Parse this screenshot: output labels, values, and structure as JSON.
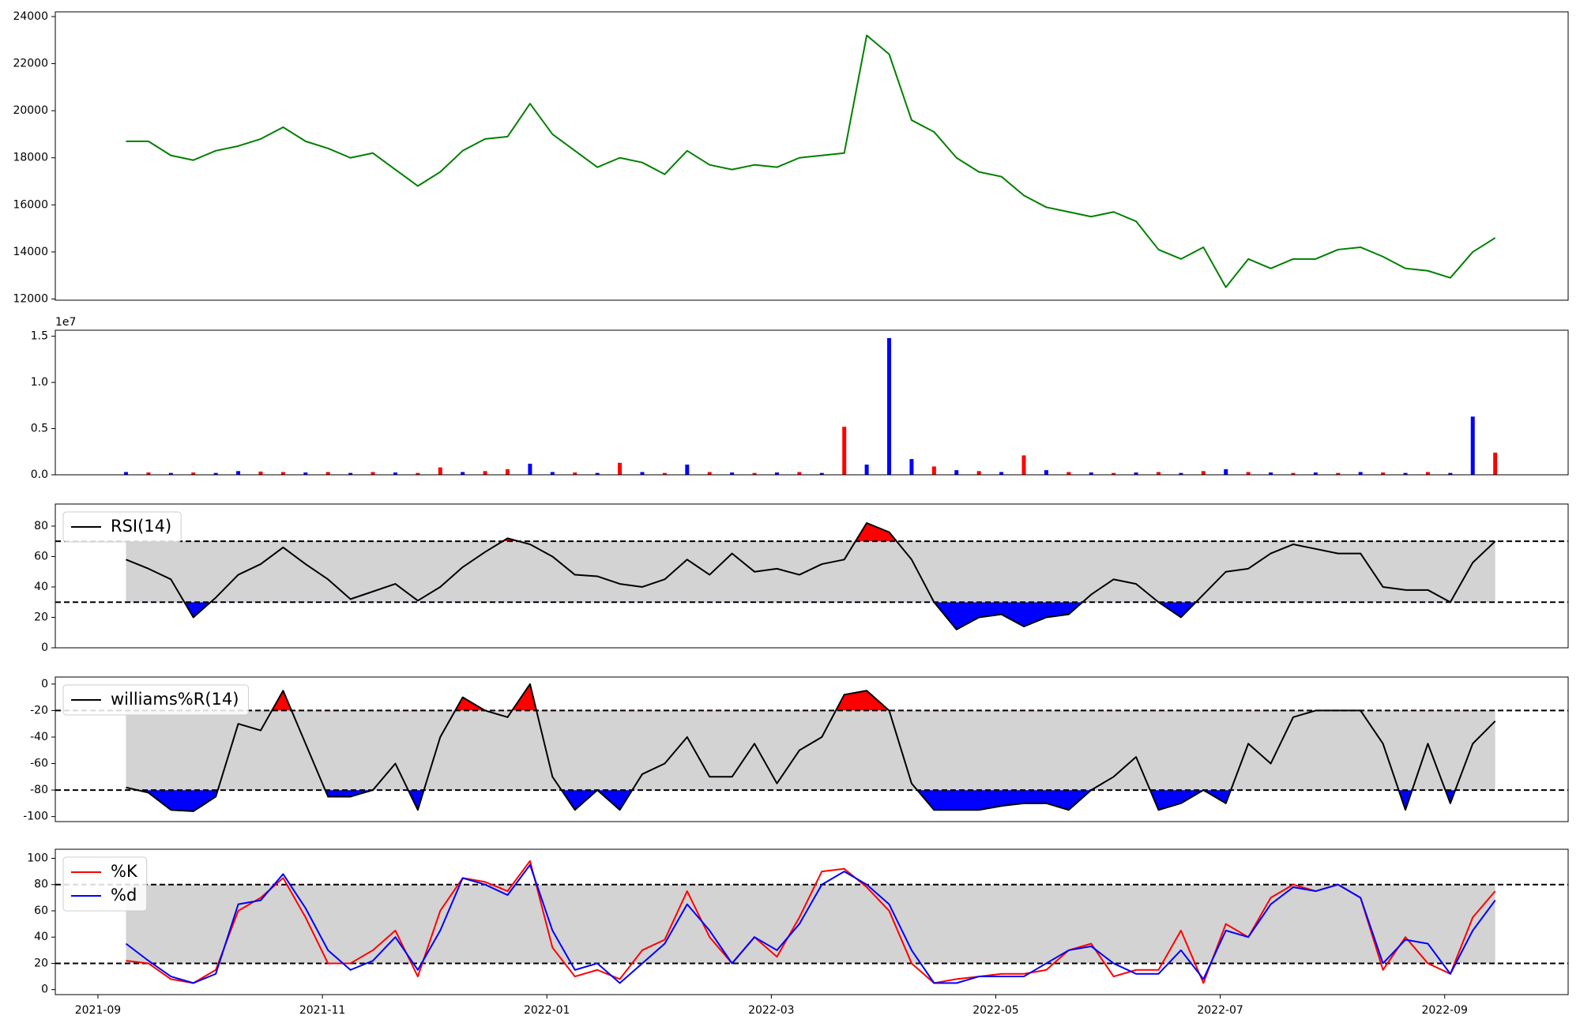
{
  "chart_data": [
    {
      "type": "line",
      "x": [
        0.25,
        0.45,
        0.65,
        0.85,
        1.05,
        1.25,
        1.45,
        1.65,
        1.85,
        2.05,
        2.25,
        2.45,
        2.65,
        2.85,
        3.05,
        3.25,
        3.45,
        3.65,
        3.85,
        4.05,
        4.25,
        4.45,
        4.65,
        4.85,
        5.05,
        5.25,
        5.45,
        5.65,
        5.85,
        6.05,
        6.25,
        6.45,
        6.65,
        6.85,
        7.05,
        7.25,
        7.45,
        7.65,
        7.85,
        8.05,
        8.25,
        8.45,
        8.65,
        8.85,
        9.05,
        9.25,
        9.45,
        9.65,
        9.85,
        10.05,
        10.25,
        10.45,
        10.65,
        10.85,
        11.05,
        11.25,
        11.45,
        11.65,
        11.85,
        12.05,
        12.25,
        12.45
      ],
      "series": [
        {
          "color": "green",
          "values": [
            18700,
            18700,
            18100,
            17900,
            18300,
            18500,
            18800,
            19300,
            18700,
            18400,
            18000,
            18200,
            17500,
            16800,
            17400,
            18300,
            18800,
            18900,
            20300,
            19000,
            18300,
            17600,
            18000,
            17800,
            17300,
            18300,
            17700,
            17500,
            17700,
            17600,
            18000,
            18100,
            18200,
            23200,
            22400,
            19600,
            19100,
            18000,
            17400,
            17200,
            16400,
            15900,
            15700,
            15500,
            15700,
            15300,
            14100,
            13700,
            14200,
            12500,
            13700,
            13300,
            13700,
            13700,
            14100,
            14200,
            13800,
            13300,
            13200,
            12900,
            14000,
            14600
          ]
        }
      ],
      "xlim": [
        -0.38,
        13.1
      ],
      "ylim": [
        11950,
        24200
      ],
      "yticks": [
        12000,
        14000,
        16000,
        18000,
        20000,
        22000,
        24000
      ]
    },
    {
      "type": "bar",
      "x": [
        0.25,
        0.45,
        0.65,
        0.85,
        1.05,
        1.25,
        1.45,
        1.65,
        1.85,
        2.05,
        2.25,
        2.45,
        2.65,
        2.85,
        3.05,
        3.25,
        3.45,
        3.65,
        3.85,
        4.05,
        4.25,
        4.45,
        4.65,
        4.85,
        5.05,
        5.25,
        5.45,
        5.65,
        5.85,
        6.05,
        6.25,
        6.45,
        6.65,
        6.85,
        7.05,
        7.25,
        7.45,
        7.65,
        7.85,
        8.05,
        8.25,
        8.45,
        8.65,
        8.85,
        9.05,
        9.25,
        9.45,
        9.65,
        9.85,
        10.05,
        10.25,
        10.45,
        10.65,
        10.85,
        11.05,
        11.25,
        11.45,
        11.65,
        11.85,
        12.05,
        12.25,
        12.45
      ],
      "values": [
        300000,
        250000,
        200000,
        250000,
        200000,
        400000,
        350000,
        300000,
        250000,
        300000,
        200000,
        300000,
        250000,
        200000,
        800000,
        300000,
        400000,
        600000,
        1200000,
        300000,
        250000,
        200000,
        1300000,
        300000,
        200000,
        1100000,
        300000,
        250000,
        200000,
        250000,
        300000,
        200000,
        5200000,
        1100000,
        14800000,
        1700000,
        900000,
        500000,
        400000,
        300000,
        2100000,
        500000,
        300000,
        250000,
        200000,
        250000,
        300000,
        200000,
        400000,
        600000,
        300000,
        250000,
        200000,
        250000,
        200000,
        300000,
        250000,
        200000,
        300000,
        200000,
        6300000,
        2400000
      ],
      "colors": [
        "blue",
        "red",
        "blue",
        "red",
        "blue",
        "blue",
        "red",
        "red",
        "blue",
        "red",
        "blue",
        "red",
        "blue",
        "red",
        "red",
        "blue",
        "red",
        "red",
        "blue",
        "blue",
        "red",
        "blue",
        "red",
        "blue",
        "red",
        "blue",
        "red",
        "blue",
        "red",
        "blue",
        "red",
        "blue",
        "red",
        "blue",
        "blue",
        "blue",
        "red",
        "blue",
        "red",
        "blue",
        "red",
        "blue",
        "red",
        "blue",
        "red",
        "blue",
        "red",
        "blue",
        "red",
        "blue",
        "red",
        "blue",
        "red",
        "blue",
        "red",
        "blue",
        "red",
        "blue",
        "red",
        "blue",
        "blue",
        "red"
      ],
      "xlim": [
        -0.38,
        13.1
      ],
      "ylim": [
        0,
        15650000
      ],
      "yticks": [
        {
          "value": 0,
          "label": "0.0"
        },
        {
          "value": 5000000,
          "label": "0.5"
        },
        {
          "value": 10000000,
          "label": "1.0"
        },
        {
          "value": 15000000,
          "label": "1.5"
        }
      ],
      "offset_text": "1e7"
    },
    {
      "type": "line",
      "x": [
        0.25,
        0.45,
        0.65,
        0.85,
        1.05,
        1.25,
        1.45,
        1.65,
        1.85,
        2.05,
        2.25,
        2.45,
        2.65,
        2.85,
        3.05,
        3.25,
        3.45,
        3.65,
        3.85,
        4.05,
        4.25,
        4.45,
        4.65,
        4.85,
        5.05,
        5.25,
        5.45,
        5.65,
        5.85,
        6.05,
        6.25,
        6.45,
        6.65,
        6.85,
        7.05,
        7.25,
        7.45,
        7.65,
        7.85,
        8.05,
        8.25,
        8.45,
        8.65,
        8.85,
        9.05,
        9.25,
        9.45,
        9.65,
        9.85,
        10.05,
        10.25,
        10.45,
        10.65,
        10.85,
        11.05,
        11.25,
        11.45,
        11.65,
        11.85,
        12.05,
        12.25,
        12.45
      ],
      "series": [
        {
          "name": "RSI(14)",
          "color": "black",
          "values": [
            58,
            52,
            45,
            20,
            33,
            48,
            55,
            66,
            55,
            45,
            32,
            37,
            42,
            31,
            40,
            53,
            63,
            72,
            68,
            60,
            48,
            47,
            42,
            40,
            45,
            58,
            48,
            62,
            50,
            52,
            48,
            55,
            58,
            82,
            76,
            58,
            30,
            12,
            20,
            22,
            14,
            20,
            22,
            35,
            45,
            42,
            30,
            20,
            35,
            50,
            52,
            62,
            68,
            65,
            62,
            62,
            40,
            38,
            38,
            30,
            56,
            70
          ]
        }
      ],
      "bands": {
        "lower": 30,
        "upper": 70,
        "fill": "lightgray",
        "above_color": "red",
        "below_color": "blue"
      },
      "xlim": [
        -0.38,
        13.1
      ],
      "ylim": [
        0,
        94.5
      ],
      "yticks": [
        0,
        20,
        40,
        60,
        80
      ],
      "legend": "upper left"
    },
    {
      "type": "line",
      "x": [
        0.25,
        0.45,
        0.65,
        0.85,
        1.05,
        1.25,
        1.45,
        1.65,
        1.85,
        2.05,
        2.25,
        2.45,
        2.65,
        2.85,
        3.05,
        3.25,
        3.45,
        3.65,
        3.85,
        4.05,
        4.25,
        4.45,
        4.65,
        4.85,
        5.05,
        5.25,
        5.45,
        5.65,
        5.85,
        6.05,
        6.25,
        6.45,
        6.65,
        6.85,
        7.05,
        7.25,
        7.45,
        7.65,
        7.85,
        8.05,
        8.25,
        8.45,
        8.65,
        8.85,
        9.05,
        9.25,
        9.45,
        9.65,
        9.85,
        10.05,
        10.25,
        10.45,
        10.65,
        10.85,
        11.05,
        11.25,
        11.45,
        11.65,
        11.85,
        12.05,
        12.25,
        12.45
      ],
      "series": [
        {
          "name": "williams%R(14)",
          "color": "black",
          "values": [
            -78,
            -82,
            -95,
            -96,
            -85,
            -30,
            -35,
            -5,
            -45,
            -85,
            -85,
            -80,
            -60,
            -95,
            -40,
            -10,
            -20,
            -25,
            0,
            -70,
            -95,
            -80,
            -95,
            -68,
            -60,
            -40,
            -70,
            -70,
            -45,
            -75,
            -50,
            -40,
            -8,
            -5,
            -20,
            -75,
            -95,
            -95,
            -95,
            -92,
            -90,
            -90,
            -95,
            -80,
            -70,
            -55,
            -95,
            -90,
            -80,
            -90,
            -45,
            -60,
            -25,
            -20,
            -20,
            -20,
            -45,
            -95,
            -45,
            -90,
            -45,
            -28
          ]
        }
      ],
      "bands": {
        "lower": -80,
        "upper": -20,
        "fill": "lightgray",
        "above_color": "red",
        "below_color": "blue"
      },
      "xlim": [
        -0.38,
        13.1
      ],
      "ylim": [
        -103.8,
        5.3
      ],
      "yticks": [
        0,
        -20,
        -40,
        -60,
        -80,
        -100
      ],
      "legend": "upper left"
    },
    {
      "type": "line",
      "x": [
        0.25,
        0.45,
        0.65,
        0.85,
        1.05,
        1.25,
        1.45,
        1.65,
        1.85,
        2.05,
        2.25,
        2.45,
        2.65,
        2.85,
        3.05,
        3.25,
        3.45,
        3.65,
        3.85,
        4.05,
        4.25,
        4.45,
        4.65,
        4.85,
        5.05,
        5.25,
        5.45,
        5.65,
        5.85,
        6.05,
        6.25,
        6.45,
        6.65,
        6.85,
        7.05,
        7.25,
        7.45,
        7.65,
        7.85,
        8.05,
        8.25,
        8.45,
        8.65,
        8.85,
        9.05,
        9.25,
        9.45,
        9.65,
        9.85,
        10.05,
        10.25,
        10.45,
        10.65,
        10.85,
        11.05,
        11.25,
        11.45,
        11.65,
        11.85,
        12.05,
        12.25,
        12.45
      ],
      "series": [
        {
          "name": "%K",
          "color": "red",
          "values": [
            22,
            20,
            8,
            5,
            15,
            60,
            70,
            85,
            55,
            20,
            20,
            30,
            45,
            10,
            60,
            85,
            82,
            75,
            98,
            32,
            10,
            15,
            8,
            30,
            38,
            75,
            40,
            20,
            40,
            25,
            55,
            90,
            92,
            78,
            60,
            20,
            5,
            8,
            10,
            12,
            12,
            15,
            30,
            35,
            10,
            15,
            15,
            45,
            5,
            50,
            40,
            70,
            80,
            75,
            80,
            70,
            15,
            40,
            20,
            12,
            55,
            75
          ]
        },
        {
          "name": "%d",
          "color": "blue",
          "values": [
            35,
            22,
            10,
            5,
            12,
            65,
            68,
            88,
            62,
            30,
            15,
            22,
            40,
            15,
            45,
            85,
            80,
            72,
            95,
            45,
            15,
            20,
            5,
            20,
            35,
            65,
            45,
            20,
            40,
            30,
            50,
            80,
            90,
            80,
            65,
            30,
            5,
            5,
            10,
            10,
            10,
            20,
            30,
            33,
            20,
            12,
            12,
            30,
            8,
            45,
            40,
            65,
            78,
            75,
            80,
            70,
            20,
            38,
            35,
            12,
            45,
            68
          ]
        }
      ],
      "bands": {
        "lower": 20,
        "upper": 80,
        "fill": "lightgray"
      },
      "xlim": [
        -0.38,
        13.1
      ],
      "ylim": [
        -3.8,
        106.9
      ],
      "yticks": [
        0,
        20,
        40,
        60,
        80,
        100
      ],
      "legend": "upper left",
      "xticks": [
        {
          "value": 0,
          "label": "2021-09"
        },
        {
          "value": 2,
          "label": "2021-11"
        },
        {
          "value": 4,
          "label": "2022-01"
        },
        {
          "value": 6,
          "label": "2022-03"
        },
        {
          "value": 8,
          "label": "2022-05"
        },
        {
          "value": 10,
          "label": "2022-07"
        },
        {
          "value": 12,
          "label": "2022-09"
        }
      ]
    }
  ]
}
